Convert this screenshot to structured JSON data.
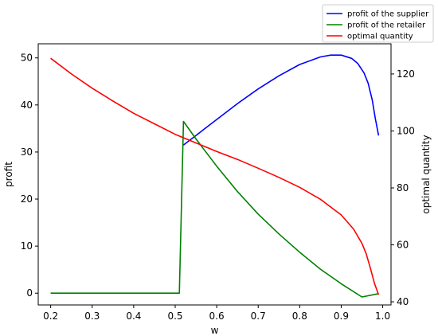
{
  "chart_data": {
    "type": "line",
    "xlabel": "w",
    "ylabel": "profit",
    "ylabel_right": "optimal quantity",
    "xlim": [
      0.17,
      1.02
    ],
    "ylim": [
      -2.5,
      53
    ],
    "ylim_right": [
      38.9,
      130.6
    ],
    "xticks": [
      0.2,
      0.3,
      0.4,
      0.5,
      0.6,
      0.7,
      0.8,
      0.9,
      1.0
    ],
    "xtick_labels": [
      "0.2",
      "0.3",
      "0.4",
      "0.5",
      "0.6",
      "0.7",
      "0.8",
      "0.9",
      "1.0"
    ],
    "yticks": [
      0,
      10,
      20,
      30,
      40,
      50
    ],
    "ytick_labels": [
      "0",
      "10",
      "20",
      "30",
      "40",
      "50"
    ],
    "yticks_right": [
      40,
      60,
      80,
      100,
      120
    ],
    "ytick_labels_right": [
      "40",
      "60",
      "80",
      "100",
      "120"
    ],
    "grid": false,
    "legend_position": "top-right, outside plot",
    "series": [
      {
        "name": "profit of the supplier",
        "color": "#0000ff",
        "axis": "left",
        "x": [
          0.52,
          0.55,
          0.6,
          0.65,
          0.7,
          0.75,
          0.8,
          0.85,
          0.875,
          0.9,
          0.925,
          0.94,
          0.955,
          0.965,
          0.975,
          0.982,
          0.99
        ],
        "y": [
          31.5,
          33.5,
          36.9,
          40.3,
          43.4,
          46.2,
          48.6,
          50.2,
          50.6,
          50.6,
          49.9,
          48.8,
          46.8,
          44.6,
          41.0,
          37.2,
          33.5
        ]
      },
      {
        "name": "profit of the retailer",
        "color": "#008000",
        "axis": "left",
        "x": [
          0.2,
          0.3,
          0.4,
          0.5,
          0.51,
          0.52,
          0.55,
          0.6,
          0.65,
          0.7,
          0.75,
          0.8,
          0.85,
          0.9,
          0.95,
          0.99
        ],
        "y": [
          0,
          0,
          0,
          0,
          0,
          36.5,
          32.8,
          27.0,
          21.6,
          16.8,
          12.6,
          8.7,
          5.1,
          2.0,
          -0.8,
          -0.1
        ]
      },
      {
        "name": "optimal quantity",
        "color": "#ff0000",
        "axis": "right",
        "x": [
          0.2,
          0.25,
          0.3,
          0.35,
          0.4,
          0.45,
          0.5,
          0.55,
          0.6,
          0.65,
          0.7,
          0.75,
          0.8,
          0.85,
          0.9,
          0.93,
          0.95,
          0.96,
          0.97,
          0.98,
          0.99
        ],
        "y": [
          125.5,
          120.0,
          115.0,
          110.5,
          106.2,
          102.5,
          98.8,
          95.8,
          92.8,
          90.0,
          86.9,
          83.7,
          80.2,
          76.0,
          70.5,
          65.5,
          60.5,
          57.0,
          52.0,
          46.5,
          42.5
        ]
      }
    ]
  }
}
